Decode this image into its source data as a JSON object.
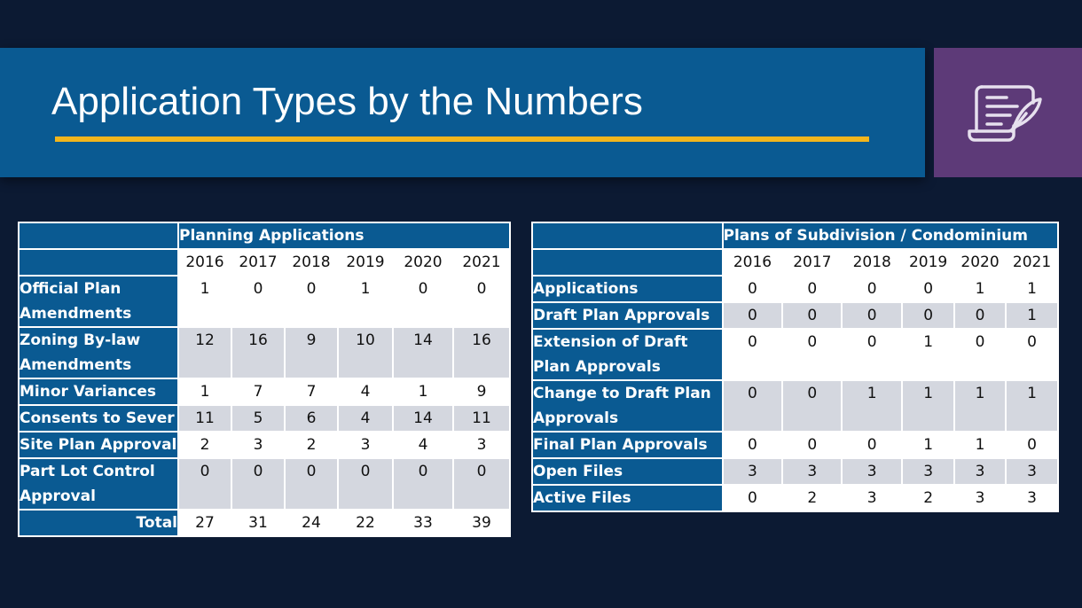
{
  "title": "Application Types by the Numbers",
  "colors": {
    "background": "#0c1a33",
    "header_blue": "#0a5a92",
    "accent_yellow": "#f2b51c",
    "icon_purple": "#5d3a78",
    "row_gray": "#d4d7df"
  },
  "icon": "document-scroll-quill-icon",
  "planning": {
    "header": "Planning Applications",
    "years": [
      "2016",
      "2017",
      "2018",
      "2019",
      "2020",
      "2021"
    ],
    "rows": [
      {
        "label": "Official Plan Amendments",
        "values": [
          "1",
          "0",
          "0",
          "1",
          "0",
          "0"
        ]
      },
      {
        "label": "Zoning By-law Amendments",
        "values": [
          "12",
          "16",
          "9",
          "10",
          "14",
          "16"
        ]
      },
      {
        "label": "Minor Variances",
        "values": [
          "1",
          "7",
          "7",
          "4",
          "1",
          "9"
        ]
      },
      {
        "label": "Consents to Sever",
        "values": [
          "11",
          "5",
          "6",
          "4",
          "14",
          "11"
        ]
      },
      {
        "label": "Site Plan Approval",
        "values": [
          "2",
          "3",
          "2",
          "3",
          "4",
          "3"
        ]
      },
      {
        "label": "Part Lot Control Approval",
        "values": [
          "0",
          "0",
          "0",
          "0",
          "0",
          "0"
        ]
      }
    ],
    "total_label": "Total",
    "totals": [
      "27",
      "31",
      "24",
      "22",
      "33",
      "39"
    ]
  },
  "subdivision": {
    "header": "Plans of Subdivision / Condominium",
    "years": [
      "2016",
      "2017",
      "2018",
      "2019",
      "2020",
      "2021"
    ],
    "rows": [
      {
        "label": "Applications",
        "values": [
          "0",
          "0",
          "0",
          "0",
          "1",
          "1"
        ]
      },
      {
        "label": "Draft Plan Approvals",
        "values": [
          "0",
          "0",
          "0",
          "0",
          "0",
          "1"
        ]
      },
      {
        "label": "Extension of Draft Plan Approvals",
        "values": [
          "0",
          "0",
          "0",
          "1",
          "0",
          "0"
        ]
      },
      {
        "label": "Change to Draft Plan Approvals",
        "values": [
          "0",
          "0",
          "1",
          "1",
          "1",
          "1"
        ]
      },
      {
        "label": "Final Plan Approvals",
        "values": [
          "0",
          "0",
          "0",
          "1",
          "1",
          "0"
        ]
      },
      {
        "label": "Open Files",
        "values": [
          "3",
          "3",
          "3",
          "3",
          "3",
          "3"
        ]
      },
      {
        "label": "Active Files",
        "values": [
          "0",
          "2",
          "3",
          "2",
          "3",
          "3"
        ]
      }
    ]
  }
}
